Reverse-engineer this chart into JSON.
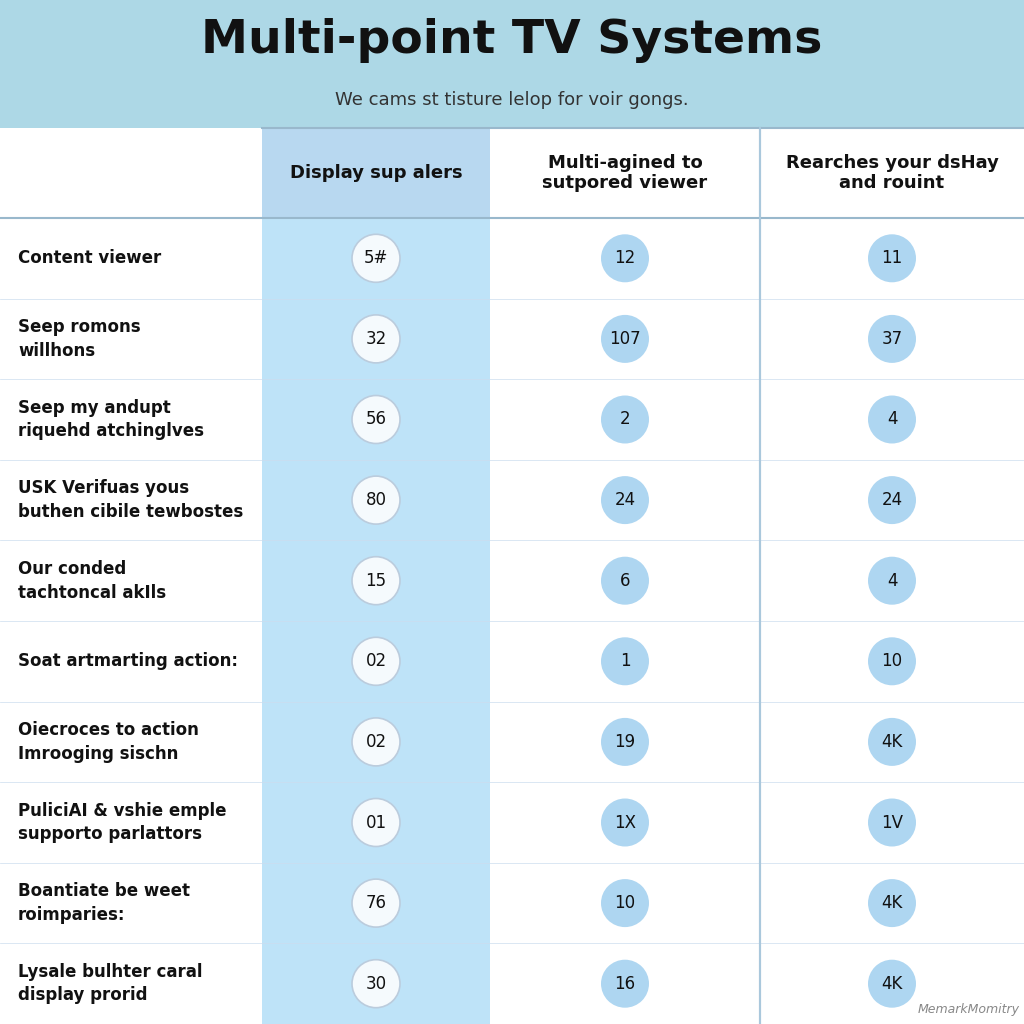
{
  "title": "Multi-point TV Systems",
  "subtitle": "We cams st tisture lelop for voir gongs.",
  "col_headers": [
    "Display sup alers",
    "Multi-agined to\nsutpored viewer",
    "Rearches your dsHay\nand rouint"
  ],
  "row_labels": [
    "Content viewer",
    "Seep romons\nwillhons",
    "Seep my andupt\nriquehd atchinglves",
    "USK Verifuas yous\nbuthen cibile tewbostes",
    "Our conded\ntachtoncal akIls",
    "Soat artmarting action:",
    "Oiecroces to action\nImrooging sischn",
    "PuliciAI & vshie emple\nsupporto parlattors",
    "Boantiate be weet\nroimparies:",
    "Lysale bulhter caral\ndisplay prorid"
  ],
  "col1_values": [
    "5#",
    "32",
    "56",
    "80",
    "15",
    "02",
    "02",
    "01",
    "76",
    "30"
  ],
  "col2_values": [
    "12",
    "107",
    "2",
    "24",
    "6",
    "1",
    "19",
    "1X",
    "10",
    "16"
  ],
  "col3_values": [
    "11",
    "37",
    "4",
    "24",
    "4",
    "10",
    "4K",
    "1V",
    "4K",
    "4K"
  ],
  "title_bg": "#add8e6",
  "col1_bg": "#bee3f8",
  "col2_bg": "#ffffff",
  "col3_bg": "#ffffff",
  "header_col1_bg": "#b8d8f0",
  "circle_col1_face": "#f5fafd",
  "circle_col1_edge": "#bbccdd",
  "circle_col23_face": "#aed6f1",
  "divider_color": "#aac8dc",
  "watermark": "MemarkMomitry",
  "font_color_dark": "#111111"
}
